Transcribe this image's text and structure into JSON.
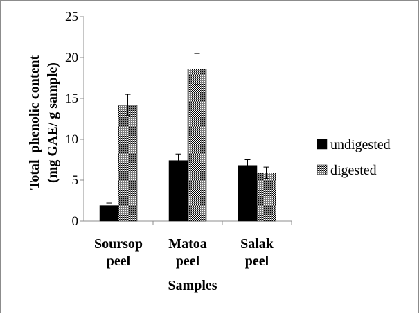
{
  "chart_data": {
    "type": "bar",
    "categories": [
      [
        "Soursop",
        "peel"
      ],
      [
        "Matoa",
        "peel"
      ],
      [
        "Salak",
        "peel"
      ]
    ],
    "series": [
      {
        "name": "undigested",
        "values": [
          1.9,
          7.4,
          6.8
        ],
        "errors": [
          0.3,
          0.8,
          0.7
        ],
        "pattern": "solid"
      },
      {
        "name": "digested",
        "values": [
          14.2,
          18.6,
          5.9
        ],
        "errors": [
          1.3,
          1.9,
          0.7
        ],
        "pattern": "checker"
      }
    ],
    "title": "",
    "xlabel": "Samples",
    "ylabel_lines": [
      "Total  phenolic content",
      "(mg GAE/ g sample)"
    ],
    "ylim": [
      0,
      25
    ],
    "yticks": [
      0,
      5,
      10,
      15,
      20,
      25
    ],
    "grid": false,
    "legend": "right",
    "colors": {
      "undigested": "#000000",
      "digested": "#000000"
    }
  }
}
